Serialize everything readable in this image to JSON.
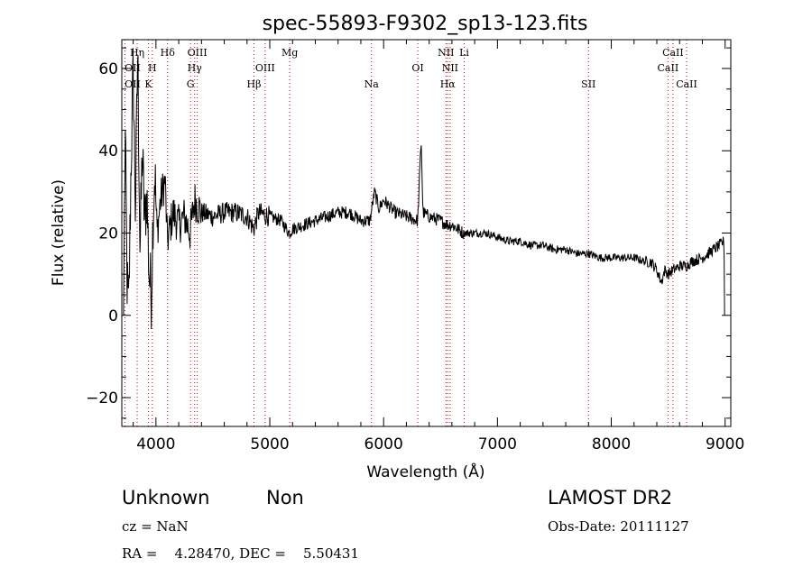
{
  "chart_data": {
    "type": "line",
    "title": "spec-55893-F9302_sp13-123.fits",
    "xlabel": "Wavelength (Å)",
    "ylabel": "Flux (relative)",
    "xlim": [
      3700,
      9050
    ],
    "ylim": [
      -27,
      67
    ],
    "x_ticks": [
      4000,
      5000,
      6000,
      7000,
      8000,
      9000
    ],
    "y_ticks": [
      -20,
      0,
      20,
      40,
      60
    ],
    "line_color": "#000000",
    "marker_color": "#cc0000",
    "spectrum_anchors": [
      [
        3715,
        0
      ],
      [
        3730,
        45
      ],
      [
        3745,
        10
      ],
      [
        3760,
        0
      ],
      [
        3780,
        35
      ],
      [
        3800,
        60
      ],
      [
        3820,
        25
      ],
      [
        3840,
        65
      ],
      [
        3860,
        15
      ],
      [
        3880,
        40
      ],
      [
        3900,
        22
      ],
      [
        3920,
        30
      ],
      [
        3940,
        10
      ],
      [
        3960,
        5
      ],
      [
        3975,
        25
      ],
      [
        3990,
        35
      ],
      [
        4010,
        20
      ],
      [
        4040,
        28
      ],
      [
        4080,
        33
      ],
      [
        4100,
        18
      ],
      [
        4150,
        25
      ],
      [
        4200,
        22
      ],
      [
        4250,
        24
      ],
      [
        4300,
        20
      ],
      [
        4340,
        28
      ],
      [
        4400,
        25
      ],
      [
        4500,
        24
      ],
      [
        4600,
        25
      ],
      [
        4700,
        25
      ],
      [
        4800,
        24
      ],
      [
        4860,
        21
      ],
      [
        4900,
        25
      ],
      [
        5000,
        24
      ],
      [
        5100,
        23
      ],
      [
        5170,
        20
      ],
      [
        5200,
        21
      ],
      [
        5300,
        22
      ],
      [
        5400,
        23
      ],
      [
        5500,
        24
      ],
      [
        5600,
        25
      ],
      [
        5700,
        25
      ],
      [
        5800,
        23
      ],
      [
        5880,
        23
      ],
      [
        5920,
        30
      ],
      [
        5960,
        26
      ],
      [
        6000,
        28
      ],
      [
        6100,
        25
      ],
      [
        6200,
        24
      ],
      [
        6300,
        23
      ],
      [
        6330,
        43
      ],
      [
        6345,
        25
      ],
      [
        6400,
        24
      ],
      [
        6500,
        23
      ],
      [
        6563,
        22
      ],
      [
        6600,
        22
      ],
      [
        6700,
        20
      ],
      [
        6800,
        20
      ],
      [
        6900,
        20
      ],
      [
        7000,
        19
      ],
      [
        7100,
        18
      ],
      [
        7200,
        18
      ],
      [
        7300,
        17
      ],
      [
        7400,
        17
      ],
      [
        7500,
        16
      ],
      [
        7600,
        16
      ],
      [
        7700,
        15
      ],
      [
        7800,
        15
      ],
      [
        7900,
        14
      ],
      [
        8000,
        14
      ],
      [
        8100,
        14
      ],
      [
        8200,
        14
      ],
      [
        8300,
        13
      ],
      [
        8350,
        13
      ],
      [
        8400,
        11
      ],
      [
        8440,
        8
      ],
      [
        8470,
        11
      ],
      [
        8500,
        10
      ],
      [
        8542,
        11
      ],
      [
        8600,
        12
      ],
      [
        8662,
        12
      ],
      [
        8700,
        13
      ],
      [
        8800,
        14
      ],
      [
        8900,
        16
      ],
      [
        8950,
        17
      ],
      [
        8990,
        18
      ],
      [
        8995,
        0
      ]
    ],
    "lines": [
      {
        "label": "OII",
        "wavelength": 3727,
        "row": 2
      },
      {
        "label": "OII",
        "wavelength": 3727,
        "row": 1
      },
      {
        "label": "Hη",
        "wavelength": 3835,
        "row": 0
      },
      {
        "label": "H",
        "wavelength": 3968,
        "row": 1
      },
      {
        "label": "K",
        "wavelength": 3934,
        "row": 2
      },
      {
        "label": "Hδ",
        "wavelength": 4102,
        "row": 0
      },
      {
        "label": "OIII",
        "wavelength": 4363,
        "row": 0
      },
      {
        "label": "Hγ",
        "wavelength": 4340,
        "row": 1
      },
      {
        "label": "G",
        "wavelength": 4304,
        "row": 2
      },
      {
        "label": "OIII",
        "wavelength": 4959,
        "row": 1
      },
      {
        "label": "Hβ",
        "wavelength": 4861,
        "row": 2
      },
      {
        "label": "Mg",
        "wavelength": 5175,
        "row": 0
      },
      {
        "label": "Na",
        "wavelength": 5893,
        "row": 2
      },
      {
        "label": "OI",
        "wavelength": 6300,
        "row": 1
      },
      {
        "label": "NII",
        "wavelength": 6548,
        "row": 0
      },
      {
        "label": "NII",
        "wavelength": 6584,
        "row": 1
      },
      {
        "label": "Hα",
        "wavelength": 6563,
        "row": 2
      },
      {
        "label": "Li",
        "wavelength": 6708,
        "row": 0
      },
      {
        "label": "SII",
        "wavelength": 7800,
        "row": 2
      },
      {
        "label": "CaII",
        "wavelength": 8542,
        "row": 0
      },
      {
        "label": "CaII",
        "wavelength": 8498,
        "row": 1
      },
      {
        "label": "CaII",
        "wavelength": 8662,
        "row": 2
      }
    ]
  },
  "info": {
    "classification": "Unknown",
    "subclass": "Non",
    "survey": "LAMOST DR2",
    "cz_text": "cz = NaN",
    "obs_date": "Obs-Date: 20111127",
    "ra_dec": "RA =    4.28470, DEC =    5.50431"
  }
}
